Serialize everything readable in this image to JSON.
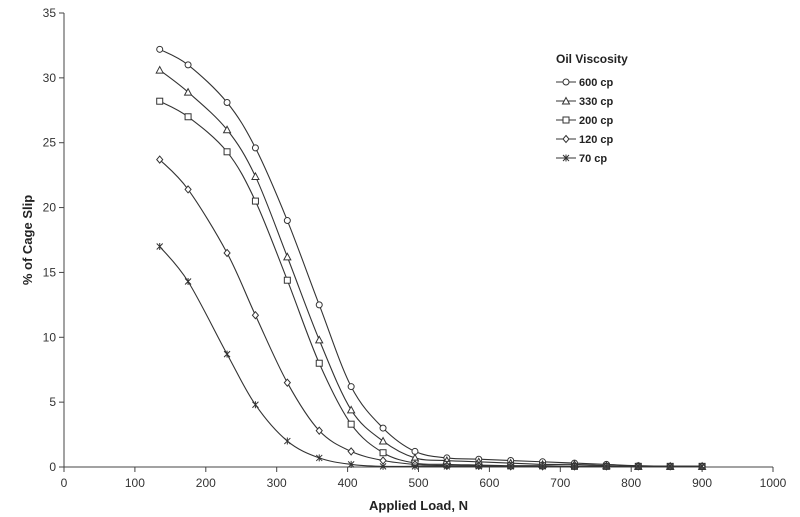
{
  "chart_data": {
    "type": "line",
    "title": "",
    "xlabel": "Applied Load, N",
    "ylabel": "% of Cage Slip",
    "xlim": [
      0,
      1000
    ],
    "ylim": [
      0,
      35
    ],
    "xticks": [
      0,
      100,
      200,
      300,
      400,
      500,
      600,
      700,
      800,
      900,
      1000
    ],
    "yticks": [
      0,
      5,
      10,
      15,
      20,
      25,
      30,
      35
    ],
    "grid": false,
    "legend": {
      "title": "Oil Viscosity",
      "placement": "top-right"
    },
    "series": [
      {
        "name": "600 cp",
        "marker": "circle",
        "x": [
          135,
          175,
          230,
          270,
          315,
          360,
          405,
          450,
          495,
          540,
          585,
          630,
          675,
          720,
          765,
          810,
          855,
          900
        ],
        "y": [
          32.2,
          31.0,
          28.1,
          24.6,
          19.0,
          12.5,
          6.2,
          3.0,
          1.2,
          0.7,
          0.6,
          0.5,
          0.4,
          0.3,
          0.2,
          0.1,
          0.05,
          0.05
        ]
      },
      {
        "name": "330 cp",
        "marker": "triangle",
        "x": [
          135,
          175,
          230,
          270,
          315,
          360,
          405,
          450,
          495,
          540,
          585,
          630,
          675,
          720,
          765,
          810,
          855,
          900
        ],
        "y": [
          30.6,
          28.9,
          26.0,
          22.4,
          16.2,
          9.8,
          4.4,
          2.0,
          0.7,
          0.5,
          0.4,
          0.3,
          0.2,
          0.2,
          0.1,
          0.05,
          0.05,
          0.05
        ]
      },
      {
        "name": "200 cp",
        "marker": "square",
        "x": [
          135,
          175,
          230,
          270,
          315,
          360,
          405,
          450,
          495,
          540,
          585,
          630,
          675,
          720,
          765,
          810,
          855,
          900
        ],
        "y": [
          28.2,
          27.0,
          24.3,
          20.5,
          14.4,
          8.0,
          3.3,
          1.1,
          0.3,
          0.2,
          0.15,
          0.1,
          0.1,
          0.05,
          0.05,
          0.05,
          0.05,
          0.05
        ]
      },
      {
        "name": "120 cp",
        "marker": "diamond",
        "x": [
          135,
          175,
          230,
          270,
          315,
          360,
          405,
          450,
          495,
          540,
          585,
          630,
          675,
          720,
          765,
          810,
          855,
          900
        ],
        "y": [
          23.7,
          21.4,
          16.5,
          11.7,
          6.5,
          2.8,
          1.2,
          0.5,
          0.2,
          0.1,
          0.1,
          0.05,
          0.05,
          0.05,
          0.05,
          0.05,
          0.05,
          0.05
        ]
      },
      {
        "name": "70 cp",
        "marker": "star",
        "x": [
          135,
          175,
          230,
          270,
          315,
          360,
          405,
          450,
          495,
          540,
          585,
          630,
          675,
          720,
          765,
          810,
          855,
          900
        ],
        "y": [
          17.0,
          14.3,
          8.7,
          4.8,
          2.0,
          0.7,
          0.2,
          0.05,
          0.05,
          0.05,
          0.05,
          0.05,
          0.05,
          0.05,
          0.05,
          0.05,
          0.05,
          0.05
        ]
      }
    ]
  }
}
